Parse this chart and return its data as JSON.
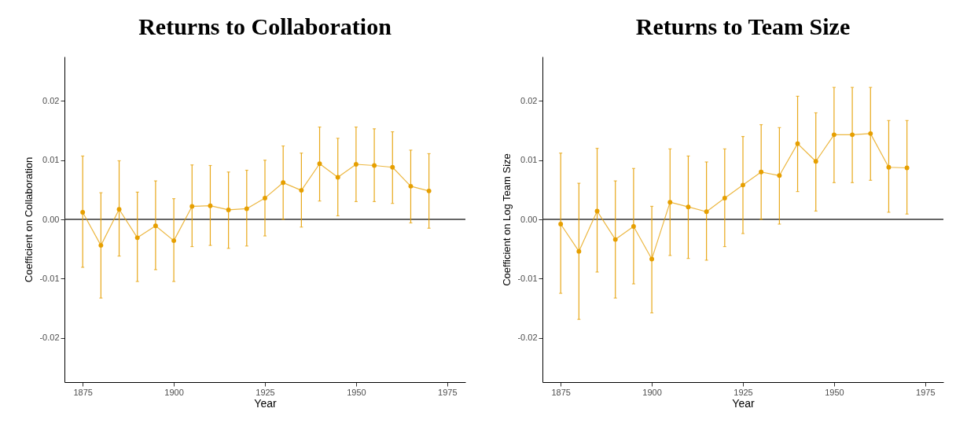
{
  "chart_data": [
    {
      "type": "line",
      "title": "Returns to Collaboration",
      "xlabel": "Year",
      "ylabel": "Coefficient on Collaboration",
      "x": [
        1875,
        1880,
        1885,
        1890,
        1895,
        1900,
        1905,
        1910,
        1915,
        1920,
        1925,
        1930,
        1935,
        1940,
        1945,
        1950,
        1955,
        1960,
        1965,
        1970
      ],
      "series": [
        {
          "color": "#e69f00",
          "values": [
            0.0012,
            -0.0044,
            0.0017,
            -0.0031,
            -0.0011,
            -0.0036,
            0.0022,
            0.0023,
            0.0016,
            0.0018,
            0.0036,
            0.0062,
            0.0049,
            0.0094,
            0.0071,
            0.0093,
            0.0091,
            0.0088,
            0.0056,
            0.0048
          ],
          "errors": [
            [
              -0.0081,
              0.0107
            ],
            [
              -0.0133,
              0.0045
            ],
            [
              -0.0062,
              0.0099
            ],
            [
              -0.0105,
              0.0046
            ],
            [
              -0.0085,
              0.0065
            ],
            [
              -0.0105,
              0.0035
            ],
            [
              -0.0046,
              0.0092
            ],
            [
              -0.0044,
              0.0091
            ],
            [
              -0.0049,
              0.008
            ],
            [
              -0.0045,
              0.0083
            ],
            [
              -0.0028,
              0.01
            ],
            [
              0.0,
              0.0124
            ],
            [
              -0.0013,
              0.0112
            ],
            [
              0.0031,
              0.0156
            ],
            [
              0.0006,
              0.0137
            ],
            [
              0.003,
              0.0156
            ],
            [
              0.003,
              0.0153
            ],
            [
              0.0027,
              0.0148
            ],
            [
              -0.0006,
              0.0117
            ],
            [
              -0.0015,
              0.0111
            ]
          ]
        }
      ],
      "xlim": [
        1870,
        1980
      ],
      "xticks": [
        1875,
        1900,
        1925,
        1950,
        1975
      ],
      "ylim": [
        -0.0275,
        0.0275
      ],
      "yticks": [
        -0.02,
        -0.01,
        {
          "value": 0,
          "label": "0.00"
        },
        0.01,
        0.02
      ],
      "ref_lines": [
        {
          "axis": "y",
          "value": 0,
          "color": "#333333"
        }
      ],
      "marker": "circle",
      "grid": false
    },
    {
      "type": "line",
      "title": "Returns to Team Size",
      "xlabel": "Year",
      "ylabel": "Coefficient on Log Team Size",
      "x": [
        1875,
        1880,
        1885,
        1890,
        1895,
        1900,
        1905,
        1910,
        1915,
        1920,
        1925,
        1930,
        1935,
        1940,
        1945,
        1950,
        1955,
        1960,
        1965,
        1970
      ],
      "series": [
        {
          "color": "#e69f00",
          "values": [
            -0.0008,
            -0.0054,
            0.0014,
            -0.0034,
            -0.0012,
            -0.0067,
            0.0029,
            0.0021,
            0.0013,
            0.0036,
            0.0058,
            0.008,
            0.0074,
            0.0128,
            0.0098,
            0.0143,
            0.0143,
            0.0145,
            0.0088,
            0.0087
          ],
          "errors": [
            [
              -0.0125,
              0.0112
            ],
            [
              -0.0169,
              0.0061
            ],
            [
              -0.0089,
              0.012
            ],
            [
              -0.0133,
              0.0065
            ],
            [
              -0.0109,
              0.0086
            ],
            [
              -0.0158,
              0.0022
            ],
            [
              -0.0061,
              0.0119
            ],
            [
              -0.0066,
              0.0107
            ],
            [
              -0.0069,
              0.0097
            ],
            [
              -0.0046,
              0.0119
            ],
            [
              -0.0024,
              0.014
            ],
            [
              0.0,
              0.016
            ],
            [
              -0.0008,
              0.0155
            ],
            [
              0.0047,
              0.0208
            ],
            [
              0.0014,
              0.018
            ],
            [
              0.0062,
              0.0223
            ],
            [
              0.0062,
              0.0223
            ],
            [
              0.0066,
              0.0223
            ],
            [
              0.0012,
              0.0167
            ],
            [
              0.0009,
              0.0167
            ]
          ]
        }
      ],
      "xlim": [
        1870,
        1980
      ],
      "xticks": [
        1875,
        1900,
        1925,
        1950,
        1975
      ],
      "ylim": [
        -0.0275,
        0.0275
      ],
      "yticks": [
        -0.02,
        -0.01,
        {
          "value": 0,
          "label": "0.00"
        },
        0.01,
        0.02
      ],
      "ref_lines": [
        {
          "axis": "y",
          "value": 0,
          "color": "#333333"
        }
      ],
      "marker": "circle",
      "grid": false
    }
  ]
}
